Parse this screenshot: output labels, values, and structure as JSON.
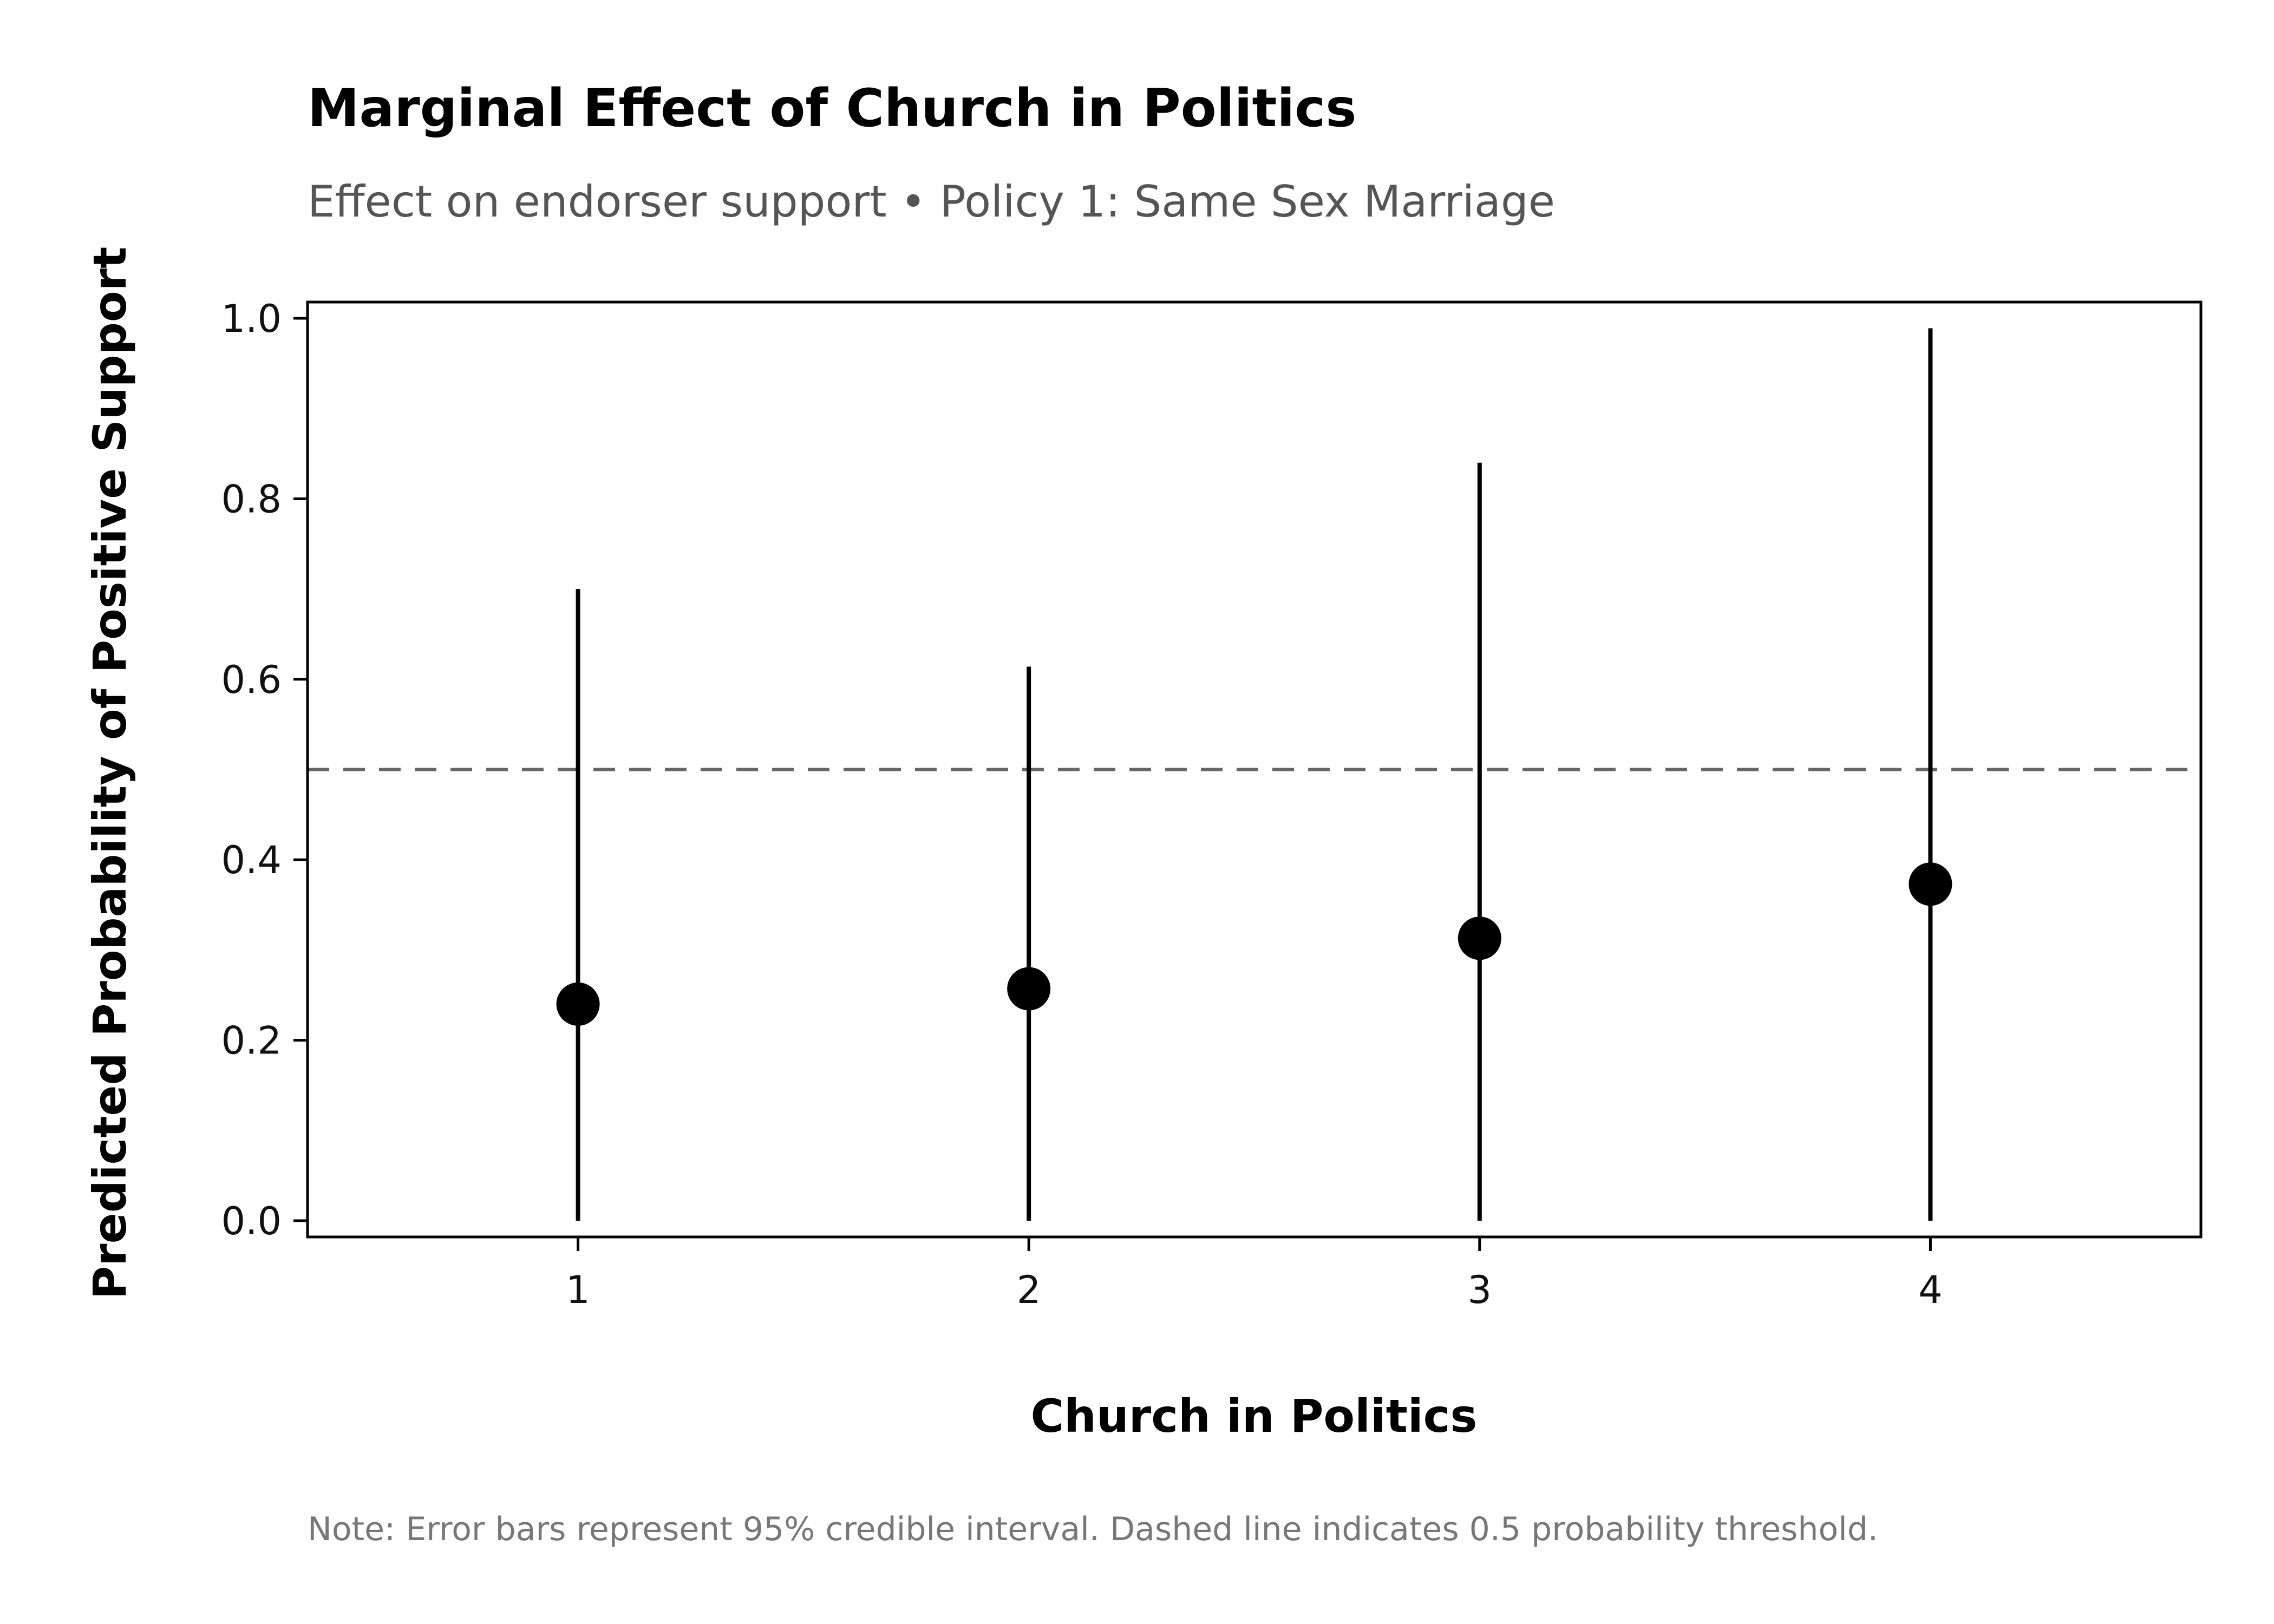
{
  "chart_data": {
    "type": "scatter",
    "title": "Marginal Effect of Church in Politics",
    "subtitle": "Effect on endorser support • Policy 1: Same Sex Marriage",
    "xlabel": "Church in Politics",
    "ylabel": "Predicted Probability of Positive Support",
    "note": "Note: Error bars represent 95% credible interval. Dashed line indicates 0.5 probability threshold.",
    "x": [
      1,
      2,
      3,
      4
    ],
    "x_tick_labels": [
      "1",
      "2",
      "3",
      "4"
    ],
    "y": [
      0.24,
      0.257,
      0.313,
      0.373
    ],
    "lower": [
      0.0,
      0.0,
      0.0,
      0.0
    ],
    "upper": [
      0.7,
      0.614,
      0.84,
      0.989
    ],
    "y_ticks": [
      0.0,
      0.2,
      0.4,
      0.6,
      0.8,
      1.0
    ],
    "y_tick_labels": [
      "0.0",
      "0.2",
      "0.4",
      "0.6",
      "0.8",
      "1.0"
    ],
    "xlim": [
      0.4,
      4.6
    ],
    "ylim": [
      -0.018,
      1.018
    ],
    "reference_line": 0.5,
    "grid": false,
    "colors": {
      "points": "#000000",
      "error_bars": "#000000",
      "reference_line": "#666666"
    }
  }
}
